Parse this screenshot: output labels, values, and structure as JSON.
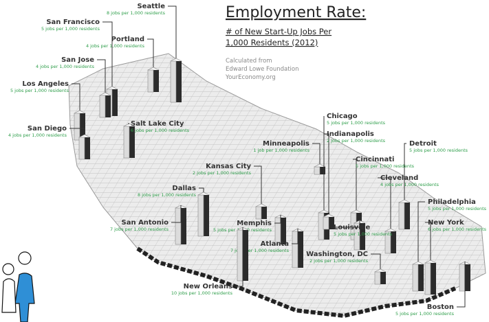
{
  "title": "Employment Rate:",
  "subtitle": [
    "# of New Start-Up Jobs Per",
    "1,000 Residents (2012)"
  ],
  "source": [
    "Calculated from",
    "Edward Lowe Foundation",
    "YourEconomy.org"
  ],
  "cities": [
    {
      "name": "Seattle",
      "value": 8,
      "label": "8 jobs per 1,000 residents"
    },
    {
      "name": "San Francisco",
      "value": 5,
      "label": "5 jobs per 1,000 residents"
    },
    {
      "name": "Portland",
      "value": 4,
      "label": "4 jobs per 1,000 residents"
    },
    {
      "name": "San Jose",
      "value": 4,
      "label": "4 jobs per 1,000 residents"
    },
    {
      "name": "Los Angeles",
      "value": 5,
      "label": "5 jobs per 1,000 residents"
    },
    {
      "name": "San Diego",
      "value": 4,
      "label": "4 jobs per 1,000 residents"
    },
    {
      "name": "Salt Lake City",
      "value": 6,
      "label": "6 jobs per 1,000 residents"
    },
    {
      "name": "Minneapolis",
      "value": 1,
      "label": "1 job per 1,000 residents"
    },
    {
      "name": "Chicago",
      "value": 5,
      "label": "5 jobs per 1,000 residents"
    },
    {
      "name": "Indianapolis",
      "value": 2,
      "label": "2 jobs per 1,000 residents"
    },
    {
      "name": "Cincinnati",
      "value": 5,
      "label": "5 jobs per 1,000 residents"
    },
    {
      "name": "Detroit",
      "value": 5,
      "label": "5 jobs per 1,000 residents"
    },
    {
      "name": "Cleveland",
      "value": 4,
      "label": "4 jobs per 1,000 residents"
    },
    {
      "name": "Philadelphia",
      "value": 5,
      "label": "5 jobs per 1,000 residents"
    },
    {
      "name": "New York",
      "value": 6,
      "label": "6 jobs per 1,000 residents"
    },
    {
      "name": "Boston",
      "value": 5,
      "label": "5 jobs per 1,000 residents"
    },
    {
      "name": "Kansas City",
      "value": 2,
      "label": "2 jobs per 1,000 residents"
    },
    {
      "name": "Dallas",
      "value": 8,
      "label": "8 jobs per 1,000 residents"
    },
    {
      "name": "San Antonio",
      "value": 7,
      "label": "7 jobs per 1,000 residents"
    },
    {
      "name": "Memphis",
      "value": 5,
      "label": "5 jobs per 1,000 residents"
    },
    {
      "name": "Louisville",
      "value": 5,
      "label": "5 jobs per 1,000 residents"
    },
    {
      "name": "Atlanta",
      "value": 7,
      "label": "7 jobs per 1,000 residents"
    },
    {
      "name": "Washington, DC",
      "value": 2,
      "label": "2 jobs per 1,000 residents"
    },
    {
      "name": "New Orleans",
      "value": 10,
      "label": "10 jobs per 1,000 residents"
    }
  ]
}
